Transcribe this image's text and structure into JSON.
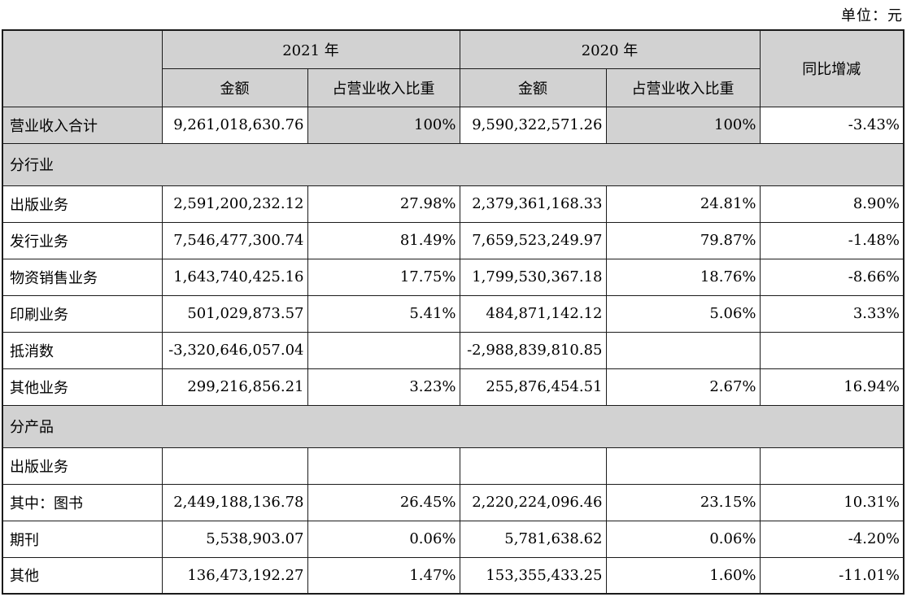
{
  "unit_label": "单位：元",
  "table": {
    "headers": {
      "y2021": "2021 年",
      "y2020": "2020 年",
      "amount": "金额",
      "ratio": "占营业收入比重",
      "yoy": "同比增减"
    },
    "colors": {
      "header_bg": "#d2d2d2",
      "border": "#1b1b1b",
      "text": "#000000"
    },
    "rows": [
      {
        "type": "total",
        "label": "营业收入合计",
        "a2021": "9,261,018,630.76",
        "r2021": "100%",
        "a2020": "9,590,322,571.26",
        "r2020": "100%",
        "yoy": "-3.43%"
      },
      {
        "type": "section",
        "label": "分行业"
      },
      {
        "type": "data",
        "label": "出版业务",
        "a2021": "2,591,200,232.12",
        "r2021": "27.98%",
        "a2020": "2,379,361,168.33",
        "r2020": "24.81%",
        "yoy": "8.90%"
      },
      {
        "type": "data",
        "label": "发行业务",
        "a2021": "7,546,477,300.74",
        "r2021": "81.49%",
        "a2020": "7,659,523,249.97",
        "r2020": "79.87%",
        "yoy": "-1.48%"
      },
      {
        "type": "data",
        "label": "物资销售业务",
        "a2021": "1,643,740,425.16",
        "r2021": "17.75%",
        "a2020": "1,799,530,367.18",
        "r2020": "18.76%",
        "yoy": "-8.66%"
      },
      {
        "type": "data",
        "label": "印刷业务",
        "a2021": "501,029,873.57",
        "r2021": "5.41%",
        "a2020": "484,871,142.12",
        "r2020": "5.06%",
        "yoy": "3.33%"
      },
      {
        "type": "data",
        "label": "抵消数",
        "a2021": "-3,320,646,057.04",
        "r2021": "",
        "a2020": "-2,988,839,810.85",
        "r2020": "",
        "yoy": ""
      },
      {
        "type": "data",
        "label": "其他业务",
        "a2021": "299,216,856.21",
        "r2021": "3.23%",
        "a2020": "255,876,454.51",
        "r2020": "2.67%",
        "yoy": "16.94%"
      },
      {
        "type": "section",
        "label": "分产品"
      },
      {
        "type": "data",
        "label": "出版业务",
        "a2021": "",
        "r2021": "",
        "a2020": "",
        "r2020": "",
        "yoy": ""
      },
      {
        "type": "data",
        "label": "其中：图书",
        "a2021": "2,449,188,136.78",
        "r2021": "26.45%",
        "a2020": "2,220,224,096.46",
        "r2020": "23.15%",
        "yoy": "10.31%"
      },
      {
        "type": "data",
        "label": "期刊",
        "a2021": "5,538,903.07",
        "r2021": "0.06%",
        "a2020": "5,781,638.62",
        "r2020": "0.06%",
        "yoy": "-4.20%"
      },
      {
        "type": "data",
        "label": "其他",
        "a2021": "136,473,192.27",
        "r2021": "1.47%",
        "a2020": "153,355,433.25",
        "r2020": "1.60%",
        "yoy": "-11.01%"
      }
    ]
  }
}
